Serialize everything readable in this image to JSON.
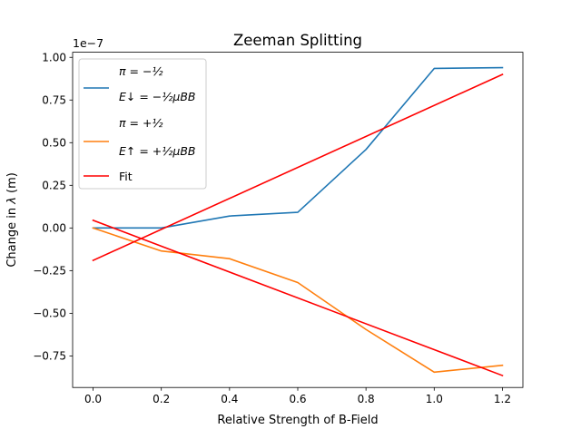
{
  "chart_data": {
    "type": "line",
    "title": "Zeeman Splitting",
    "xlabel": "Relative Strength of B-Field",
    "ylabel": "Change in λ (m)",
    "ylabel_parts": {
      "prefix": "Change in ",
      "symbol": "λ",
      "unit": " (m)"
    },
    "offset_text": "1e−7",
    "y_scale_factor": 1e-07,
    "xlim": [
      -0.06,
      1.26
    ],
    "ylim": [
      -0.935,
      1.03
    ],
    "xticks": [
      0.0,
      0.2,
      0.4,
      0.6,
      0.8,
      1.0,
      1.2
    ],
    "xtick_labels": [
      "0.0",
      "0.2",
      "0.4",
      "0.6",
      "0.8",
      "1.0",
      "1.2"
    ],
    "yticks": [
      -0.75,
      -0.5,
      -0.25,
      0.0,
      0.25,
      0.5,
      0.75,
      1.0
    ],
    "ytick_labels": [
      "−0.75",
      "−0.50",
      "−0.25",
      "0.00",
      "0.25",
      "0.50",
      "0.75",
      "1.00"
    ],
    "grid": false,
    "legend_position": "top-left",
    "series": [
      {
        "key": "pi_minus",
        "color": "#1f77b4",
        "x": [
          0.0,
          0.2,
          0.4,
          0.6,
          0.8,
          1.0,
          1.2
        ],
        "y": [
          0.0,
          0.0,
          0.07,
          0.092,
          0.46,
          0.935,
          0.94
        ]
      },
      {
        "key": "pi_plus",
        "color": "#ff7f0e",
        "x": [
          0.0,
          0.2,
          0.4,
          0.6,
          0.8,
          1.0,
          1.2
        ],
        "y": [
          0.0,
          -0.135,
          -0.18,
          -0.32,
          -0.595,
          -0.845,
          -0.805
        ]
      },
      {
        "key": "fit_up",
        "name": "Fit",
        "color": "#ff0000",
        "x": [
          0.0,
          1.2
        ],
        "y": [
          -0.19,
          0.9
        ]
      },
      {
        "key": "fit_down",
        "color": "#ff0000",
        "x": [
          0.0,
          1.2
        ],
        "y": [
          0.045,
          -0.865
        ]
      }
    ],
    "legend": [
      {
        "series": "pi_minus",
        "color": "#1f77b4",
        "line1": "π = −½",
        "line2": "E↓ = −½μBB"
      },
      {
        "series": "pi_plus",
        "color": "#ff7f0e",
        "line1": "π = +½",
        "line2": "E↑ = +½μBB"
      },
      {
        "series": "fit_up",
        "color": "#ff0000",
        "label": "Fit"
      }
    ]
  }
}
